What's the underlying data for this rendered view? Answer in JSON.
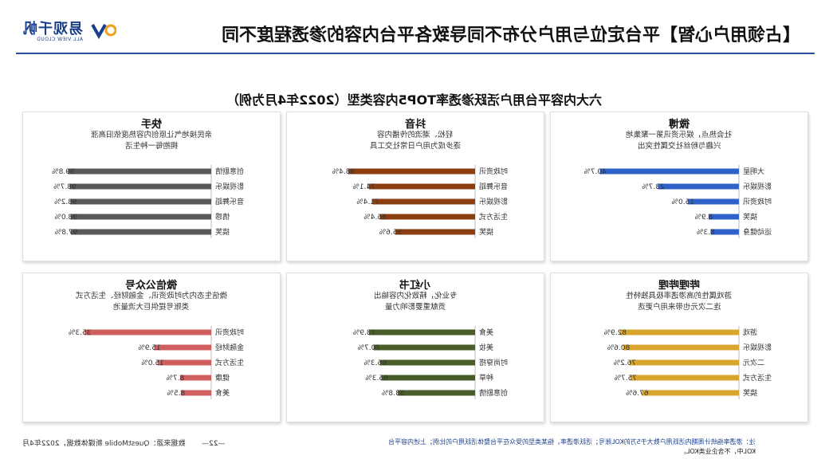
{
  "header": {
    "title": "【占领用户心智】平台定位与用户分布不同导致各平台内容的渗透程度不同",
    "brand_name": "易观千帆",
    "brand_sub": "ALL VIEW CLOUD"
  },
  "subtitle": "六大内容平台用户活跃渗透率TOP5内容类型（2022年4月为例）",
  "panels": [
    {
      "name": "微博",
      "desc": [
        "社会热点，娱乐资讯第一聚集地",
        "兴趣与粉丝社交属性突出"
      ]
    },
    {
      "name": "抖音",
      "desc": [
        "轻松、潮流的传播内容",
        "逐步成为用户日常社交工具"
      ]
    },
    {
      "name": "快手",
      "desc": [
        "亲民接地气让原创内容热度依旧高涨",
        "拥抱每一种生活"
      ]
    },
    {
      "name": "哔哩哔哩",
      "desc": [
        "游戏属性的高渗透率极具独特性",
        "连二次元也带来用户更迭"
      ]
    },
    {
      "name": "小红书",
      "desc": [
        "专业化，精致化内容输出",
        "贡献重要影响力量"
      ]
    },
    {
      "name": "微信公众号",
      "desc": [
        "微信生态内为时政资讯、金融财经、生活方式",
        "类账号提供巨大流量池"
      ]
    }
  ],
  "chart_data": [
    {
      "type": "bar",
      "title": "微博",
      "color": "#2f62c9",
      "categories": [
        "大明星",
        "影视娱乐",
        "时政资讯",
        "搞笑",
        "运动健身"
      ],
      "values": [
        40.7,
        23.7,
        15.0,
        8.9,
        8.3
      ],
      "labels": [
        "40.7%",
        "23.7%",
        "15.0%",
        "8.9%",
        "8.3%"
      ],
      "xlim": [
        0,
        42
      ]
    },
    {
      "type": "bar",
      "title": "抖音",
      "color": "#8b3e10",
      "categories": [
        "时政资讯",
        "音乐舞蹈",
        "影视娱乐",
        "生活方式",
        "搞笑"
      ],
      "values": [
        88.4,
        74.1,
        71.4,
        66.4,
        55.6
      ],
      "labels": [
        "88.4%",
        "74.1%",
        "71.4%",
        "66.4%",
        "55.6%"
      ],
      "xlim": [
        0,
        100
      ]
    },
    {
      "type": "bar",
      "title": "快手",
      "color": "#595959",
      "categories": [
        "创意剧情",
        "影视娱乐",
        "音乐舞蹈",
        "情感",
        "搞笑"
      ],
      "values": [
        99.8,
        98.7,
        98.2,
        98.0,
        97.8
      ],
      "labels": [
        "99.8%",
        "98.7%",
        "98.2%",
        "98.0%",
        "97.8%"
      ],
      "xlim": [
        0,
        100
      ]
    },
    {
      "type": "bar",
      "title": "哔哩哔哩",
      "color": "#d8a52e",
      "categories": [
        "游戏",
        "影视娱乐",
        "二次元",
        "生活方式",
        "搞笑"
      ],
      "values": [
        82.9,
        80.6,
        76.2,
        75.7,
        67.6
      ],
      "labels": [
        "82.9%",
        "80.6%",
        "76.2%",
        "75.7%",
        "67.6%"
      ],
      "xlim": [
        0,
        100
      ]
    },
    {
      "type": "bar",
      "title": "小红书",
      "color": "#485d28",
      "categories": [
        "美食",
        "美妆",
        "时尚穿搭",
        "种草",
        "创意剧情"
      ],
      "values": [
        73.9,
        70.7,
        66.3,
        65.3,
        53.8
      ],
      "labels": [
        "73.9%",
        "70.7%",
        "66.3%",
        "65.3%",
        "53.8%"
      ],
      "xlim": [
        0,
        100
      ]
    },
    {
      "type": "bar",
      "title": "微信公众号",
      "color": "#d06060",
      "categories": [
        "时政资讯",
        "金融财经",
        "生活方式",
        "健康",
        "美食"
      ],
      "values": [
        35.3,
        15.9,
        15.0,
        8.7,
        8.5
      ],
      "labels": [
        "35.3%",
        "15.9%",
        "15.0%",
        "8.7%",
        "8.5%"
      ],
      "xlim": [
        0,
        40
      ]
    }
  ],
  "footer": {
    "source": "数据来源：QuestMobile 新媒体数据，2022年4月",
    "page": "—22—",
    "note_line1": "注：渗透率指统计周期内活跃用户数大于5万的KOL账号；活跃渗透率，指某类型的受众在平台整体活跃用户的比例；上述内容平台",
    "note_line2": "KOL中，不含企业类KOL。"
  }
}
